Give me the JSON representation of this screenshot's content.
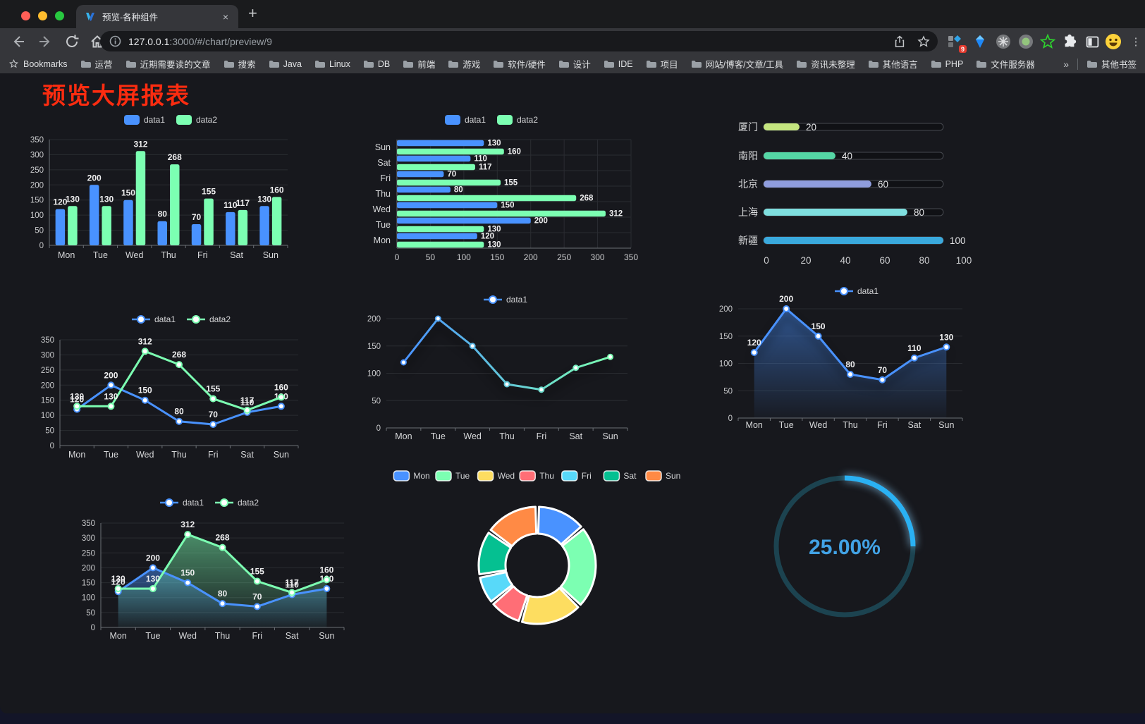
{
  "browser": {
    "tab_title": "预览-各种组件",
    "url_host": "127.0.0.1",
    "url_rest": ":3000/#/chart/preview/9",
    "new_tab_label": "+",
    "close_tab_label": "×",
    "extension_badge": "9",
    "bookmarks_label": "Bookmarks",
    "bookmarks": [
      "运营",
      "近期需要读的文章",
      "搜索",
      "Java",
      "Linux",
      "DB",
      "前端",
      "游戏",
      "软件/硬件",
      "设计",
      "IDE",
      "项目",
      "网站/博客/文章/工具",
      "资讯未整理",
      "其他语言",
      "PHP",
      "文件服务器"
    ],
    "bookmarks_overflow": "»",
    "other_bookmarks": "其他书签",
    "menu_dots": "⋮"
  },
  "page": {
    "title": "预览大屏报表",
    "title_color": "#fb2c10",
    "background": "#17181d"
  },
  "chart_data": [
    {
      "id": "bar-vertical",
      "type": "bar",
      "legend_position": "top",
      "grid": true,
      "categories": [
        "Mon",
        "Tue",
        "Wed",
        "Thu",
        "Fri",
        "Sat",
        "Sun"
      ],
      "series": [
        {
          "name": "data1",
          "color": "#4992ff",
          "values": [
            120,
            200,
            150,
            80,
            70,
            110,
            130
          ]
        },
        {
          "name": "data2",
          "color": "#7cffb2",
          "values": [
            130,
            130,
            312,
            268,
            155,
            117,
            160
          ]
        }
      ],
      "ylim": [
        0,
        350
      ],
      "ytick": 50,
      "show_labels": true
    },
    {
      "id": "bar-horizontal",
      "type": "hbar",
      "legend_position": "top",
      "grid": true,
      "categories_top_to_bottom": [
        "Sun",
        "Sat",
        "Fri",
        "Thu",
        "Wed",
        "Tue",
        "Mon"
      ],
      "series": [
        {
          "name": "data1",
          "color": "#4992ff",
          "values": [
            130,
            110,
            70,
            80,
            150,
            200,
            120
          ]
        },
        {
          "name": "data2",
          "color": "#7cffb2",
          "values": [
            160,
            117,
            155,
            268,
            312,
            130,
            130
          ]
        }
      ],
      "xlim": [
        0,
        350
      ],
      "xtick": 50,
      "show_labels": true
    },
    {
      "id": "progress-bars",
      "type": "progress",
      "max": 100,
      "axis_ticks": [
        0,
        20,
        40,
        60,
        80,
        100
      ],
      "rows": [
        {
          "label": "厦门",
          "value": 20,
          "color": "#c4e57f"
        },
        {
          "label": "南阳",
          "value": 40,
          "color": "#55d6a5"
        },
        {
          "label": "北京",
          "value": 60,
          "color": "#8f9ddd"
        },
        {
          "label": "上海",
          "value": 80,
          "color": "#7fdfdf"
        },
        {
          "label": "新疆",
          "value": 100,
          "color": "#3aa9dd"
        }
      ]
    },
    {
      "id": "line-basic",
      "type": "line",
      "legend_position": "top",
      "grid": true,
      "categories": [
        "Mon",
        "Tue",
        "Wed",
        "Thu",
        "Fri",
        "Sat",
        "Sun"
      ],
      "series": [
        {
          "name": "data1",
          "color": "#4992ff",
          "values": [
            120,
            200,
            150,
            80,
            70,
            110,
            130
          ],
          "labels": true
        },
        {
          "name": "data2",
          "color": "#7cffb2",
          "values": [
            130,
            130,
            312,
            268,
            155,
            117,
            160
          ],
          "labels": true
        }
      ],
      "ylim": [
        0,
        350
      ],
      "ytick": 50,
      "y_axis_line": true
    },
    {
      "id": "line-gradient",
      "type": "line",
      "legend_position": "top",
      "grid": true,
      "categories": [
        "Mon",
        "Tue",
        "Wed",
        "Thu",
        "Fri",
        "Sat",
        "Sun"
      ],
      "series": [
        {
          "name": "data1",
          "color": "#4992ff",
          "gradient": [
            "#4992ff",
            "#7cffb2"
          ],
          "shadow": true,
          "values": [
            120,
            200,
            150,
            80,
            70,
            110,
            130
          ],
          "labels": false
        }
      ],
      "ylim": [
        0,
        200
      ],
      "ytick": 50,
      "y_axis_line": false
    },
    {
      "id": "line-area",
      "type": "line",
      "legend_position": "top",
      "grid": true,
      "categories": [
        "Mon",
        "Tue",
        "Wed",
        "Thu",
        "Fri",
        "Sat",
        "Sun"
      ],
      "series": [
        {
          "name": "data1",
          "color": "#4992ff",
          "area": true,
          "shadow": true,
          "values": [
            120,
            200,
            150,
            80,
            70,
            110,
            130
          ],
          "labels": true
        }
      ],
      "ylim": [
        0,
        200
      ],
      "ytick": 50,
      "y_axis_line": false
    },
    {
      "id": "area-double",
      "type": "line",
      "legend_position": "top",
      "grid": true,
      "categories": [
        "Mon",
        "Tue",
        "Wed",
        "Thu",
        "Fri",
        "Sat",
        "Sun"
      ],
      "series": [
        {
          "name": "data1",
          "color": "#4992ff",
          "area": true,
          "values": [
            120,
            200,
            150,
            80,
            70,
            110,
            130
          ],
          "labels": true
        },
        {
          "name": "data2",
          "color": "#7cffb2",
          "area": true,
          "values": [
            130,
            130,
            312,
            268,
            155,
            117,
            160
          ],
          "labels": true
        }
      ],
      "ylim": [
        0,
        350
      ],
      "ytick": 50,
      "y_axis_line": true
    },
    {
      "id": "donut",
      "type": "pie",
      "legend_position": "top",
      "inner_radius_ratio": 0.55,
      "slices": [
        {
          "label": "Mon",
          "value": 120,
          "color": "#4992ff"
        },
        {
          "label": "Tue",
          "value": 200,
          "color": "#7cffb2"
        },
        {
          "label": "Wed",
          "value": 150,
          "color": "#fddd60"
        },
        {
          "label": "Thu",
          "value": 80,
          "color": "#ff6e76"
        },
        {
          "label": "Fri",
          "value": 70,
          "color": "#58d9f9"
        },
        {
          "label": "Sat",
          "value": 110,
          "color": "#05c091"
        },
        {
          "label": "Sun",
          "value": 130,
          "color": "#ff8a45"
        }
      ]
    },
    {
      "id": "gauge",
      "type": "gauge",
      "percent": 25,
      "value_text": "25.00%",
      "color": "#2ab1f3",
      "track_color": "#1c4350",
      "text_color": "#42a3e6"
    }
  ]
}
